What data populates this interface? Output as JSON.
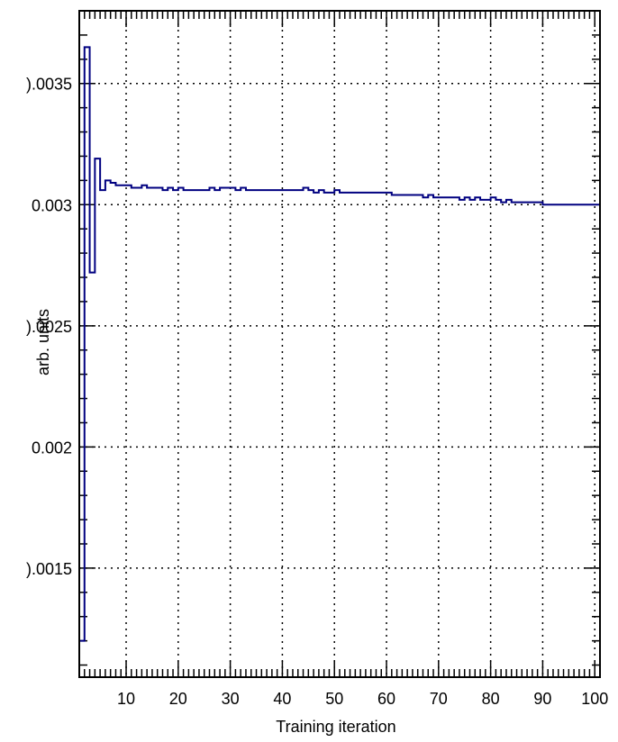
{
  "chart_data": {
    "type": "line",
    "title": "",
    "xlabel": "Training iteration",
    "ylabel": "arb. units",
    "xlim": [
      1,
      101
    ],
    "ylim": [
      0.00105,
      0.0038
    ],
    "grid": true,
    "step": true,
    "line_color": "#000080",
    "x_ticks": [
      10,
      20,
      30,
      40,
      50,
      60,
      70,
      80,
      90,
      100
    ],
    "x_tick_labels": [
      "10",
      "20",
      "30",
      "40",
      "50",
      "60",
      "70",
      "80",
      "90",
      "100"
    ],
    "y_ticks": [
      0.0015,
      0.002,
      0.0025,
      0.003,
      0.0035
    ],
    "y_tick_labels": [
      ").0015",
      "0.002",
      ").0025",
      "0.003",
      ").0035"
    ],
    "series": [
      {
        "name": "",
        "x": [
          1,
          2,
          3,
          4,
          5,
          6,
          7,
          8,
          9,
          10,
          11,
          12,
          13,
          14,
          15,
          16,
          17,
          18,
          19,
          20,
          21,
          22,
          23,
          24,
          25,
          26,
          27,
          28,
          29,
          30,
          31,
          32,
          33,
          34,
          35,
          36,
          37,
          38,
          39,
          40,
          41,
          42,
          43,
          44,
          45,
          46,
          47,
          48,
          49,
          50,
          51,
          52,
          53,
          54,
          55,
          56,
          57,
          58,
          59,
          60,
          61,
          62,
          63,
          64,
          65,
          66,
          67,
          68,
          69,
          70,
          71,
          72,
          73,
          74,
          75,
          76,
          77,
          78,
          79,
          80,
          81,
          82,
          83,
          84,
          85,
          86,
          87,
          88,
          89,
          90,
          91,
          92,
          93,
          94,
          95,
          96,
          97,
          98,
          99,
          100
        ],
        "values": [
          0.0012,
          0.00365,
          0.00272,
          0.00319,
          0.00306,
          0.0031,
          0.00309,
          0.00308,
          0.00308,
          0.00308,
          0.00307,
          0.00307,
          0.00308,
          0.00307,
          0.00307,
          0.00307,
          0.00306,
          0.00307,
          0.00306,
          0.00307,
          0.00306,
          0.00306,
          0.00306,
          0.00306,
          0.00306,
          0.00307,
          0.00306,
          0.00307,
          0.00307,
          0.00307,
          0.00306,
          0.00307,
          0.00306,
          0.00306,
          0.00306,
          0.00306,
          0.00306,
          0.00306,
          0.00306,
          0.00306,
          0.00306,
          0.00306,
          0.00306,
          0.00307,
          0.00306,
          0.00305,
          0.00306,
          0.00305,
          0.00305,
          0.00306,
          0.00305,
          0.00305,
          0.00305,
          0.00305,
          0.00305,
          0.00305,
          0.00305,
          0.00305,
          0.00305,
          0.00305,
          0.00304,
          0.00304,
          0.00304,
          0.00304,
          0.00304,
          0.00304,
          0.00303,
          0.00304,
          0.00303,
          0.00303,
          0.00303,
          0.00303,
          0.00303,
          0.00302,
          0.00303,
          0.00302,
          0.00303,
          0.00302,
          0.00302,
          0.00303,
          0.00302,
          0.00301,
          0.00302,
          0.00301,
          0.00301,
          0.00301,
          0.00301,
          0.00301,
          0.00301,
          0.003,
          0.003,
          0.003,
          0.003,
          0.003,
          0.003,
          0.003,
          0.003,
          0.003,
          0.003,
          0.003
        ]
      }
    ]
  }
}
